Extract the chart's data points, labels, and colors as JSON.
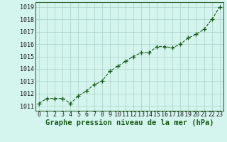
{
  "x": [
    0,
    1,
    2,
    3,
    4,
    5,
    6,
    7,
    8,
    9,
    10,
    11,
    12,
    13,
    14,
    15,
    16,
    17,
    18,
    19,
    20,
    21,
    22,
    23
  ],
  "y": [
    1011.2,
    1011.6,
    1011.6,
    1011.6,
    1011.2,
    1011.8,
    1012.2,
    1012.7,
    1013.0,
    1013.8,
    1014.2,
    1014.6,
    1015.0,
    1015.3,
    1015.3,
    1015.8,
    1015.8,
    1015.7,
    1016.0,
    1016.5,
    1016.8,
    1017.2,
    1018.0,
    1019.0
  ],
  "line_color": "#1a5c1a",
  "marker": "+",
  "marker_size": 4,
  "marker_linewidth": 1.0,
  "line_width": 0.8,
  "bg_color": "#d4f5ee",
  "grid_color": "#aacfc8",
  "ylabel_ticks": [
    1011,
    1012,
    1013,
    1014,
    1015,
    1016,
    1017,
    1018,
    1019
  ],
  "xlabel": "Graphe pression niveau de la mer (hPa)",
  "ylim": [
    1010.6,
    1019.4
  ],
  "xlim": [
    -0.5,
    23.5
  ],
  "tick_fontsize": 6,
  "label_fontsize": 7.5
}
